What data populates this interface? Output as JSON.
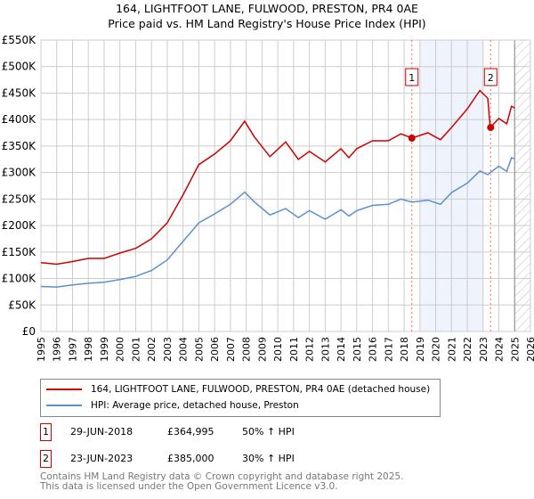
{
  "title_line1": "164, LIGHTFOOT LANE, FULWOOD, PRESTON, PR4 0AE",
  "title_line2": "Price paid vs. HM Land Registry's House Price Index (HPI)",
  "chart_data": {
    "type": "line",
    "xlim": [
      1995,
      2026
    ],
    "ylim": [
      0,
      550000
    ],
    "yticks": [
      0,
      50000,
      100000,
      150000,
      200000,
      250000,
      300000,
      350000,
      400000,
      450000,
      500000,
      550000
    ],
    "ytick_labels": [
      "£0",
      "£50K",
      "£100K",
      "£150K",
      "£200K",
      "£250K",
      "£300K",
      "£350K",
      "£400K",
      "£450K",
      "£500K",
      "£550K"
    ],
    "xticks": [
      1995,
      1996,
      1997,
      1998,
      1999,
      2000,
      2001,
      2002,
      2003,
      2004,
      2005,
      2006,
      2007,
      2008,
      2009,
      2010,
      2011,
      2012,
      2013,
      2014,
      2015,
      2016,
      2017,
      2018,
      2019,
      2020,
      2021,
      2022,
      2023,
      2024,
      2025,
      2026
    ],
    "grid": true,
    "shaded_range": [
      2019,
      2023
    ],
    "forecast_hatch_from": 2025,
    "series": [
      {
        "name": "164, LIGHTFOOT LANE, FULWOOD, PRESTON, PR4 0AE (detached house)",
        "color": "#cc0000",
        "x": [
          1995,
          1996,
          1997,
          1998,
          1999,
          2000,
          2001,
          2002,
          2003,
          2004,
          2005,
          2006,
          2007,
          2007.9,
          2008.5,
          2009.5,
          2010.5,
          2011.3,
          2012,
          2013,
          2014,
          2014.5,
          2015,
          2016,
          2017,
          2017.8,
          2018.5,
          2019.5,
          2020.3,
          2021,
          2022,
          2022.8,
          2023.3,
          2023.45,
          2024,
          2024.5,
          2024.8,
          2025
        ],
        "y": [
          130000,
          127000,
          132000,
          138000,
          138000,
          148000,
          157000,
          175000,
          205000,
          258000,
          315000,
          335000,
          360000,
          397000,
          368000,
          330000,
          358000,
          325000,
          340000,
          320000,
          345000,
          328000,
          345000,
          360000,
          360000,
          373000,
          365000,
          375000,
          362000,
          385000,
          420000,
          455000,
          440000,
          385000,
          402000,
          392000,
          425000,
          422000
        ]
      },
      {
        "name": "HPI: Average price, detached house, Preston",
        "color": "#5b8fd0",
        "x": [
          1995,
          1996,
          1997,
          1998,
          1999,
          2000,
          2001,
          2002,
          2003,
          2004,
          2005,
          2006,
          2007,
          2007.9,
          2008.5,
          2009.5,
          2010.5,
          2011.3,
          2012,
          2013,
          2014,
          2014.5,
          2015,
          2016,
          2017,
          2017.8,
          2018.5,
          2019.5,
          2020.3,
          2021,
          2022,
          2022.8,
          2023.3,
          2023.45,
          2024,
          2024.5,
          2024.8,
          2025
        ],
        "y": [
          85000,
          84000,
          88000,
          91000,
          93000,
          98000,
          104000,
          115000,
          135000,
          170000,
          205000,
          222000,
          240000,
          263000,
          245000,
          220000,
          232000,
          215000,
          228000,
          212000,
          230000,
          218000,
          228000,
          238000,
          240000,
          250000,
          244000,
          248000,
          240000,
          262000,
          280000,
          303000,
          296000,
          300000,
          312000,
          302000,
          328000,
          326000
        ]
      }
    ],
    "annotations": [
      {
        "label": "1",
        "x": 2018.49,
        "y": 364995
      },
      {
        "label": "2",
        "x": 2023.48,
        "y": 385000
      }
    ]
  },
  "legend": [
    {
      "label": "164, LIGHTFOOT LANE, FULWOOD, PRESTON, PR4 0AE (detached house)",
      "color": "#cc0000"
    },
    {
      "label": "HPI: Average price, detached house, Preston",
      "color": "#5b8fd0"
    }
  ],
  "transactions": [
    {
      "num": "1",
      "date": "29-JUN-2018",
      "price": "£364,995",
      "hpi": "50% ↑ HPI"
    },
    {
      "num": "2",
      "date": "23-JUN-2023",
      "price": "£385,000",
      "hpi": "30% ↑ HPI"
    }
  ],
  "footer_line1": "Contains HM Land Registry data © Crown copyright and database right 2025.",
  "footer_line2": "This data is licensed under the Open Government Licence v3.0."
}
